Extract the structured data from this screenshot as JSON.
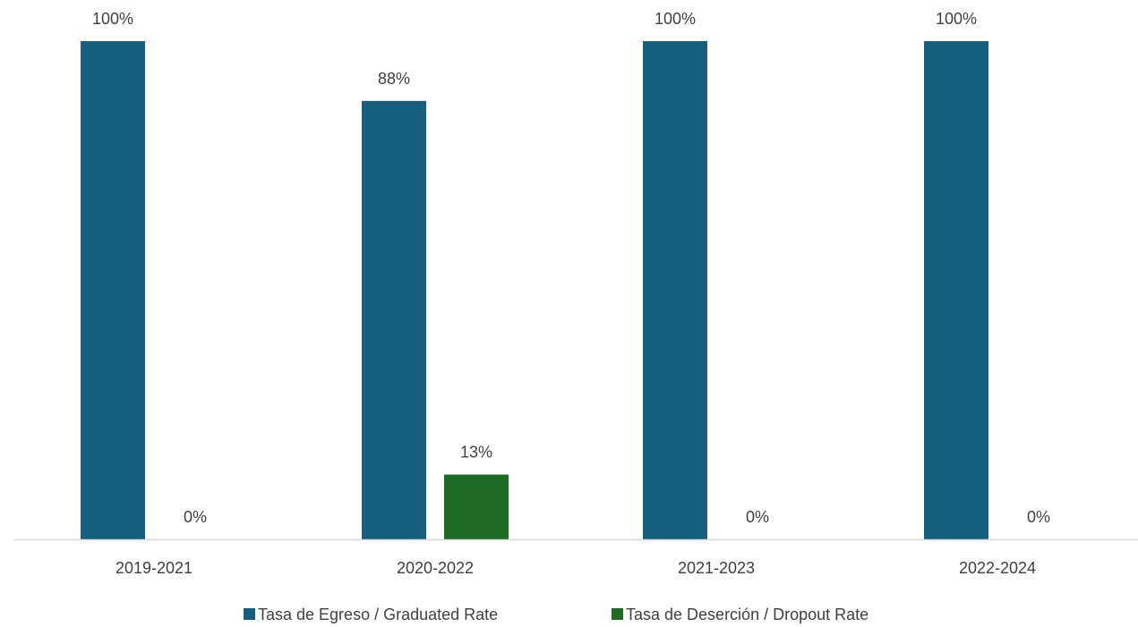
{
  "chart_data": {
    "type": "bar",
    "categories": [
      "2019-2021",
      "2020-2022",
      "2021-2023",
      "2022-2024"
    ],
    "series": [
      {
        "name": "Tasa de Egreso / Graduated Rate",
        "values": [
          100,
          88,
          100,
          100
        ],
        "labels": [
          "100%",
          "88%",
          "100%",
          "100%"
        ],
        "color": "#15607f"
      },
      {
        "name": "Tasa de Deserción / Dropout Rate",
        "values": [
          0,
          13,
          0,
          0
        ],
        "labels": [
          "0%",
          "13%",
          "0%",
          "0%"
        ],
        "color": "#1e6b24"
      }
    ],
    "title": "",
    "xlabel": "",
    "ylabel": "",
    "ylim": [
      0,
      100
    ],
    "grid": false,
    "y_axis_visible": false,
    "legend_position": "bottom",
    "axis_line_color": "#d9d9d9"
  }
}
